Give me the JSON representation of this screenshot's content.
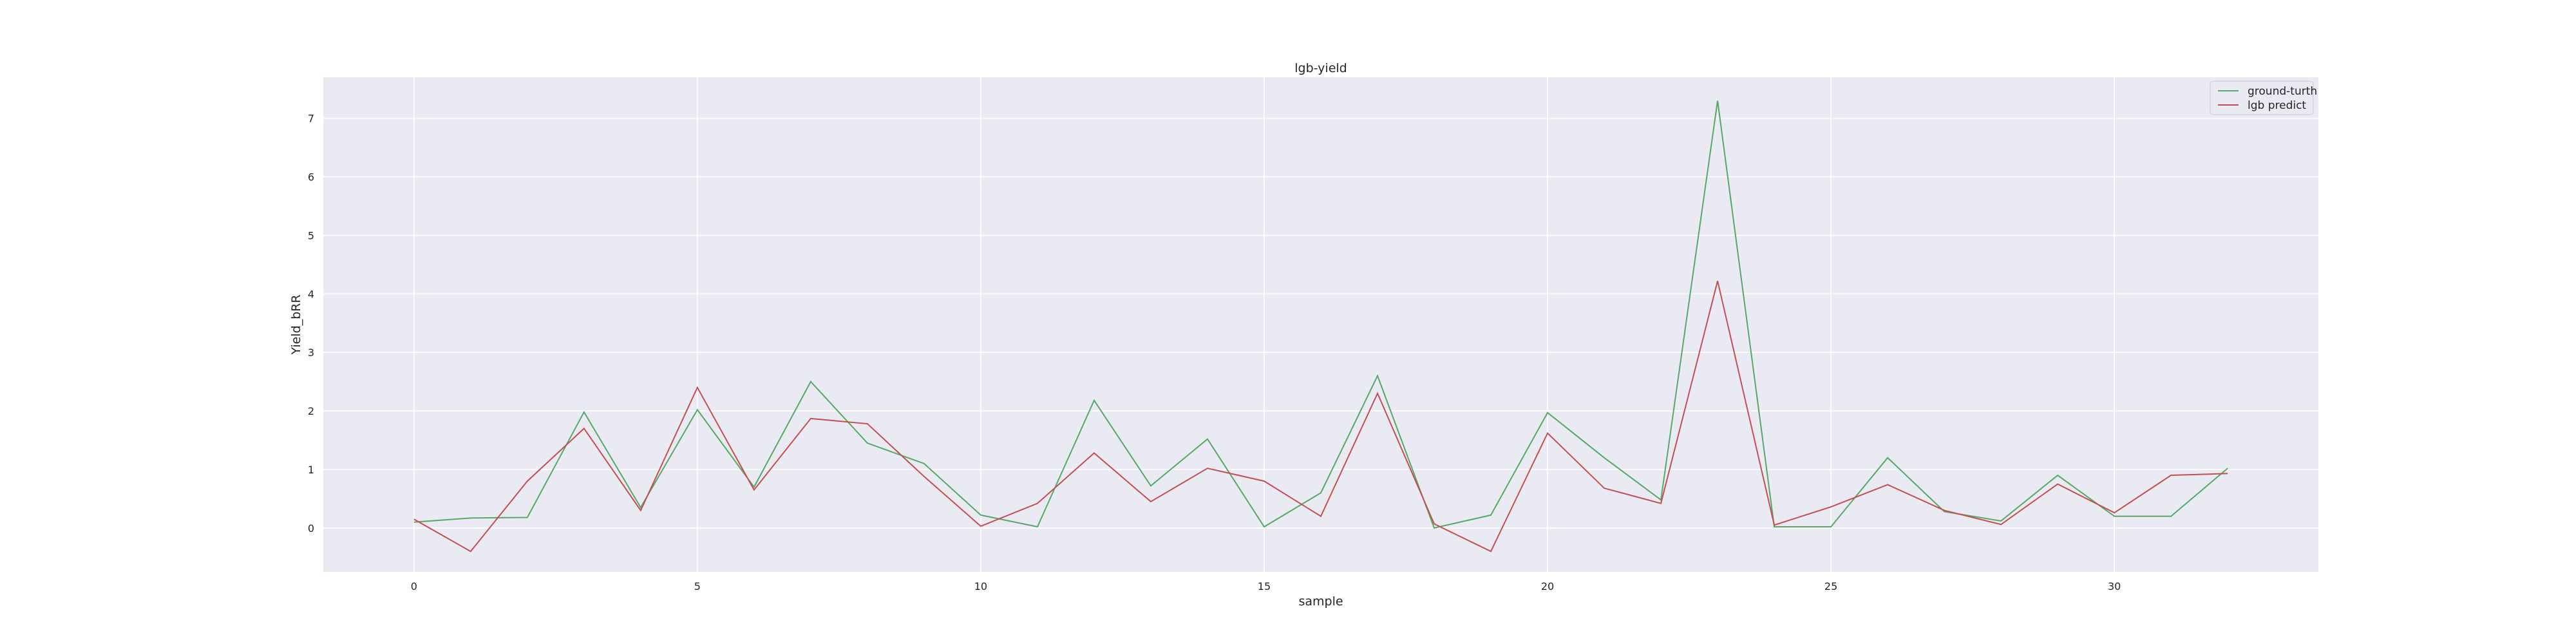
{
  "chart_data": {
    "type": "line",
    "title": "lgb-yield",
    "xlabel": "sample",
    "ylabel": "Yield_bRR",
    "x": [
      0,
      1,
      2,
      3,
      4,
      5,
      6,
      7,
      8,
      9,
      10,
      11,
      12,
      13,
      14,
      15,
      16,
      17,
      18,
      19,
      20,
      21,
      22,
      23,
      24,
      25,
      26,
      27,
      28,
      29,
      30,
      31,
      32
    ],
    "xticks": [
      0,
      5,
      10,
      15,
      20,
      25,
      30
    ],
    "yticks": [
      0,
      1,
      2,
      3,
      4,
      5,
      6,
      7
    ],
    "xlim": [
      -1.6,
      33.6
    ],
    "ylim": [
      -0.75,
      7.7
    ],
    "grid": true,
    "legend_position": "top-right",
    "series": [
      {
        "name": "ground-turth",
        "color": "#55a868",
        "values": [
          0.1,
          0.17,
          0.18,
          1.98,
          0.35,
          2.02,
          0.7,
          2.5,
          1.45,
          1.1,
          0.22,
          0.02,
          2.18,
          0.72,
          1.52,
          0.02,
          0.6,
          2.6,
          0.0,
          0.22,
          1.97,
          1.2,
          0.48,
          7.3,
          0.02,
          0.02,
          1.2,
          0.28,
          0.12,
          0.9,
          0.2,
          0.2,
          1.02
        ]
      },
      {
        "name": "lgb predict",
        "color": "#c44e52",
        "values": [
          0.15,
          -0.4,
          0.8,
          1.7,
          0.3,
          2.4,
          0.65,
          1.87,
          1.78,
          0.88,
          0.03,
          0.42,
          1.28,
          0.45,
          1.02,
          0.8,
          0.2,
          2.3,
          0.07,
          -0.4,
          1.62,
          0.68,
          0.42,
          4.22,
          0.05,
          0.36,
          0.74,
          0.3,
          0.06,
          0.75,
          0.26,
          0.9,
          0.93
        ]
      }
    ]
  }
}
